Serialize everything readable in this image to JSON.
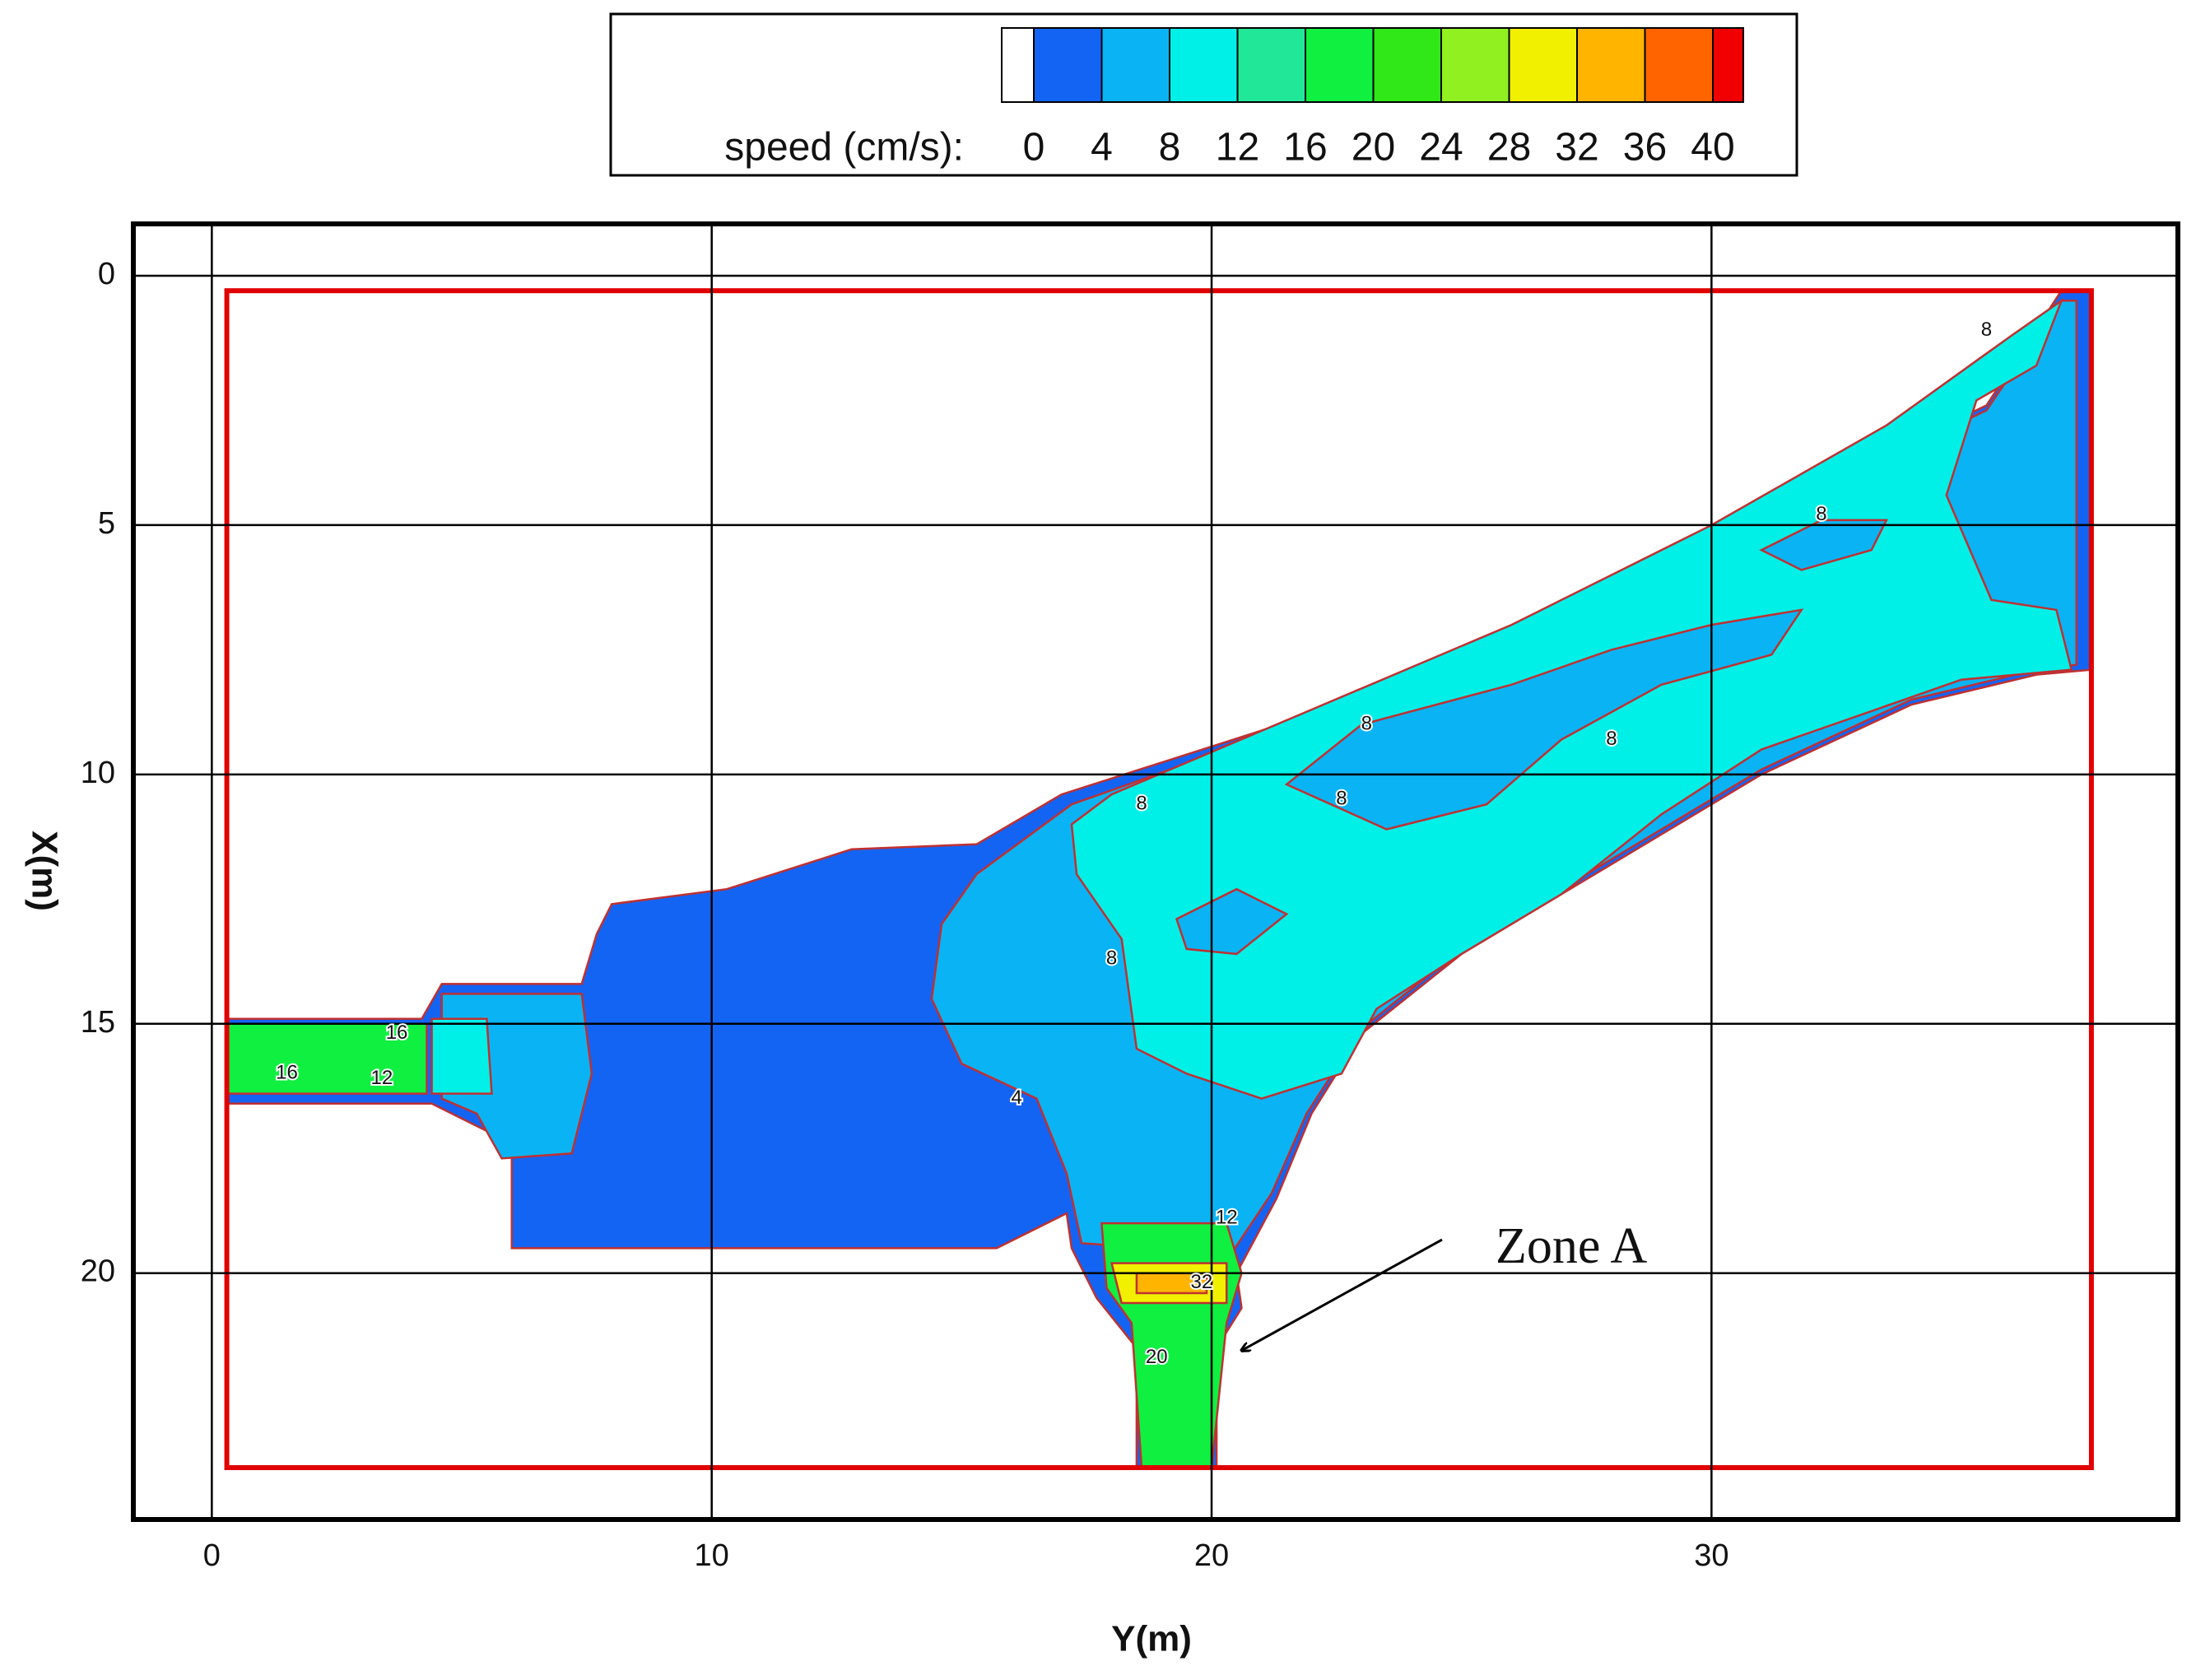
{
  "chart_data": {
    "type": "contour",
    "x_label": "Y(m)",
    "y_label": "X(m)",
    "xlim": [
      -1.57,
      39.33
    ],
    "ylim": [
      -1.04,
      24.94
    ],
    "y_inverted": true,
    "xticks": [
      0,
      10,
      20,
      30
    ],
    "yticks": [
      0,
      5,
      10,
      15,
      20
    ],
    "grid": true,
    "colorbar": {
      "label": "speed (cm/s):",
      "levels": [
        0,
        4,
        8,
        12,
        16,
        20,
        24,
        28,
        32,
        36,
        40
      ],
      "colors": [
        "#ffffff",
        "#1464f4",
        "#0ab4f4",
        "#00f0e8",
        "#20e898",
        "#10f040",
        "#30e818",
        "#90f020",
        "#f0f000",
        "#ffb400",
        "#ff6400",
        "#f00000"
      ]
    },
    "domain_box": {
      "x": [
        0.3,
        37.6
      ],
      "y": [
        0.3,
        23.9
      ],
      "color": "#e00000"
    },
    "regions": [
      {
        "level": 0,
        "points": [
          [
            0.3,
            14.9
          ],
          [
            4.2,
            14.9
          ],
          [
            4.6,
            14.2
          ],
          [
            7.4,
            14.2
          ],
          [
            7.7,
            13.2
          ],
          [
            8.0,
            12.6
          ],
          [
            10.3,
            12.3
          ],
          [
            12.8,
            11.5
          ],
          [
            15.3,
            11.4
          ],
          [
            17.0,
            10.4
          ],
          [
            22,
            8.8
          ],
          [
            26,
            7.3
          ],
          [
            30,
            5.5
          ],
          [
            33,
            3.8
          ],
          [
            35.5,
            2.6
          ],
          [
            37.0,
            0.3
          ],
          [
            37.6,
            0.3
          ],
          [
            37.6,
            7.9
          ],
          [
            36.5,
            8.0
          ],
          [
            34,
            8.6
          ],
          [
            31,
            10.0
          ],
          [
            28,
            11.8
          ],
          [
            25,
            13.6
          ],
          [
            23,
            15.2
          ],
          [
            22,
            16.8
          ],
          [
            21.3,
            18.5
          ],
          [
            20.5,
            20.0
          ],
          [
            20.6,
            20.7
          ],
          [
            20.1,
            21.5
          ],
          [
            20.1,
            23.9
          ],
          [
            18.5,
            23.9
          ],
          [
            18.5,
            21.5
          ],
          [
            17.7,
            20.5
          ],
          [
            17.2,
            19.5
          ],
          [
            17.1,
            18.8
          ],
          [
            15.7,
            19.5
          ],
          [
            6.0,
            19.5
          ],
          [
            6.0,
            17.4
          ],
          [
            4.4,
            16.6
          ],
          [
            0.3,
            16.6
          ]
        ]
      },
      {
        "level": 4,
        "points": [
          [
            14.6,
            13.0
          ],
          [
            15.3,
            12.0
          ],
          [
            17.2,
            10.6
          ],
          [
            22,
            8.9
          ],
          [
            26,
            7.4
          ],
          [
            30,
            5.6
          ],
          [
            33,
            3.9
          ],
          [
            35.5,
            2.7
          ],
          [
            37.0,
            0.5
          ],
          [
            37.3,
            0.5
          ],
          [
            37.3,
            7.8
          ],
          [
            36.5,
            7.9
          ],
          [
            34,
            8.5
          ],
          [
            31,
            9.9
          ],
          [
            28,
            11.7
          ],
          [
            25,
            13.5
          ],
          [
            23,
            15.1
          ],
          [
            21.9,
            16.8
          ],
          [
            21.2,
            18.4
          ],
          [
            20.4,
            19.6
          ],
          [
            17.4,
            19.4
          ],
          [
            17.1,
            18.0
          ],
          [
            16.5,
            16.5
          ],
          [
            15.0,
            15.8
          ],
          [
            14.4,
            14.5
          ]
        ]
      },
      {
        "level": 4,
        "points": [
          [
            4.6,
            14.4
          ],
          [
            7.4,
            14.4
          ],
          [
            7.6,
            16.0
          ],
          [
            7.2,
            17.6
          ],
          [
            5.8,
            17.7
          ],
          [
            5.3,
            16.8
          ],
          [
            4.6,
            16.5
          ]
        ]
      },
      {
        "level": 8,
        "points": [
          [
            18,
            10.4
          ],
          [
            22,
            8.7
          ],
          [
            26,
            7.0
          ],
          [
            30,
            5.0
          ],
          [
            33.5,
            3.0
          ],
          [
            36,
            1.2
          ],
          [
            37,
            0.5
          ],
          [
            36.5,
            1.8
          ],
          [
            35.3,
            2.5
          ],
          [
            34.7,
            4.4
          ],
          [
            35.6,
            6.5
          ],
          [
            36.9,
            6.7
          ],
          [
            37.2,
            7.9
          ],
          [
            35,
            8.1
          ],
          [
            31,
            9.5
          ],
          [
            29,
            10.8
          ],
          [
            27,
            12.4
          ],
          [
            25,
            13.6
          ],
          [
            23.3,
            14.7
          ],
          [
            22.6,
            16.0
          ],
          [
            21,
            16.5
          ],
          [
            19.5,
            16.0
          ],
          [
            18.5,
            15.5
          ],
          [
            18.2,
            13.3
          ],
          [
            17.3,
            12.0
          ],
          [
            17.2,
            11.0
          ]
        ]
      },
      {
        "level": 4,
        "points": [
          [
            21.5,
            10.2
          ],
          [
            23,
            9.0
          ],
          [
            26,
            8.2
          ],
          [
            28,
            7.5
          ],
          [
            30,
            7.0
          ],
          [
            31.8,
            6.7
          ],
          [
            31.2,
            7.6
          ],
          [
            29,
            8.2
          ],
          [
            27,
            9.3
          ],
          [
            25.5,
            10.6
          ],
          [
            23.5,
            11.1
          ]
        ]
      },
      {
        "level": 4,
        "points": [
          [
            31.0,
            5.5
          ],
          [
            32.2,
            4.9
          ],
          [
            33.5,
            4.9
          ],
          [
            33.2,
            5.5
          ],
          [
            31.8,
            5.9
          ]
        ]
      },
      {
        "level": 4,
        "points": [
          [
            19.3,
            12.9
          ],
          [
            20.5,
            12.3
          ],
          [
            21.5,
            12.8
          ],
          [
            20.5,
            13.6
          ],
          [
            19.5,
            13.5
          ]
        ]
      },
      {
        "level": 8,
        "points": [
          [
            4.4,
            14.9
          ],
          [
            5.5,
            14.9
          ],
          [
            5.6,
            16.4
          ],
          [
            4.4,
            16.4
          ]
        ]
      },
      {
        "level": 16,
        "points": [
          [
            0.3,
            15.0
          ],
          [
            4.3,
            15.0
          ],
          [
            4.3,
            16.4
          ],
          [
            0.3,
            16.4
          ]
        ]
      },
      {
        "level": 16,
        "points": [
          [
            17.8,
            19.0
          ],
          [
            20.3,
            19.0
          ],
          [
            20.6,
            20.0
          ],
          [
            20.3,
            21.0
          ],
          [
            20.0,
            23.9
          ],
          [
            18.6,
            23.9
          ],
          [
            18.4,
            21.0
          ],
          [
            17.9,
            20.3
          ]
        ]
      },
      {
        "level": 28,
        "points": [
          [
            18.0,
            19.8
          ],
          [
            20.3,
            19.8
          ],
          [
            20.3,
            20.6
          ],
          [
            18.2,
            20.6
          ]
        ]
      },
      {
        "level": 32,
        "points": [
          [
            18.5,
            20.0
          ],
          [
            19.9,
            20.0
          ],
          [
            19.9,
            20.4
          ],
          [
            18.5,
            20.4
          ]
        ]
      }
    ],
    "contour_labels": [
      {
        "value": 16,
        "x": 3.7,
        "y": 15.2
      },
      {
        "value": 16,
        "x": 1.5,
        "y": 16.0
      },
      {
        "value": 12,
        "x": 3.4,
        "y": 16.1
      },
      {
        "value": 8,
        "x": 35.5,
        "y": 1.1
      },
      {
        "value": 8,
        "x": 32.2,
        "y": 4.8
      },
      {
        "value": 8,
        "x": 23.1,
        "y": 9.0
      },
      {
        "value": 8,
        "x": 28.0,
        "y": 9.3
      },
      {
        "value": 8,
        "x": 22.6,
        "y": 10.5
      },
      {
        "value": 8,
        "x": 18.6,
        "y": 10.6
      },
      {
        "value": 8,
        "x": 18.0,
        "y": 13.7
      },
      {
        "value": 4,
        "x": 16.1,
        "y": 16.5
      },
      {
        "value": 32,
        "x": 19.8,
        "y": 20.2
      },
      {
        "value": 12,
        "x": 20.3,
        "y": 18.9
      },
      {
        "value": 20,
        "x": 18.9,
        "y": 21.7
      }
    ],
    "annotation": "Zone A"
  }
}
